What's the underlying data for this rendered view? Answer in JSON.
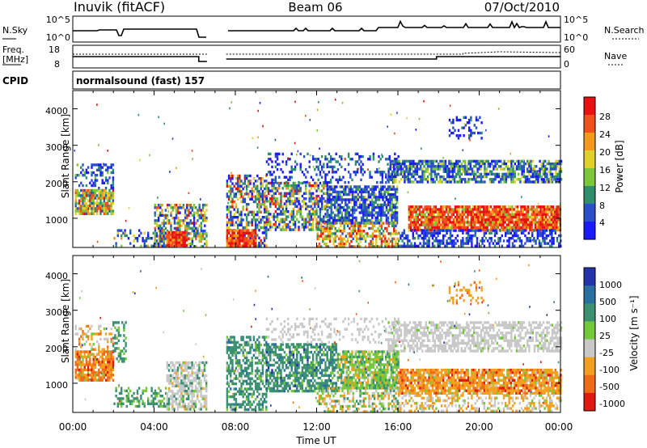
{
  "header": {
    "station": "Inuvik (fitACF)",
    "beam": "Beam 06",
    "date": "07/Oct/2010"
  },
  "noise_panel": {
    "left_label": "N.Sky",
    "right_label": "N.Search",
    "ticks_left": [
      "10^5",
      "10^0"
    ],
    "ticks_right": [
      "10^5",
      "10^0"
    ]
  },
  "freq_panel": {
    "left_label_1": "Freq.",
    "left_label_2": "[MHz]",
    "right_label": "Nave",
    "ticks_left": [
      "18",
      "8"
    ],
    "ticks_right": [
      "60",
      "0"
    ]
  },
  "cpid_panel": {
    "label": "CPID",
    "text": "normalsound (fast) 157"
  },
  "chart_data": [
    {
      "type": "heatmap",
      "name": "power",
      "ylabel": "Slant Range [km]",
      "yticks": [
        "1000",
        "2000",
        "3000",
        "4000"
      ],
      "ylim": [
        200,
        4500
      ],
      "colorbar_label": "Power [dB]",
      "colorbar_ticks": [
        "4",
        "8",
        "12",
        "16",
        "20",
        "24",
        "28"
      ],
      "colors": [
        "#1a1aff",
        "#2a4fc8",
        "#2f8f6a",
        "#7cc63c",
        "#e0d02a",
        "#f39a1c",
        "#f0501c",
        "#e81010"
      ]
    },
    {
      "type": "heatmap",
      "name": "velocity",
      "ylabel": "Slant Range [km]",
      "yticks": [
        "1000",
        "2000",
        "3000",
        "4000"
      ],
      "ylim": [
        200,
        4500
      ],
      "colorbar_label": "Velocity [m s⁻¹]",
      "colorbar_ticks": [
        "1000",
        "500",
        "100",
        "25",
        "-25",
        "-100",
        "-500",
        "-1000"
      ],
      "colors": [
        "#2233aa",
        "#2a6fa0",
        "#3a9070",
        "#74c83a",
        "#c8c8c8",
        "#f2a020",
        "#f06a18",
        "#e01a10"
      ]
    }
  ],
  "x_axis": {
    "ticks": [
      "00:00",
      "04:00",
      "08:00",
      "12:00",
      "16:00",
      "20:00",
      "00:00"
    ],
    "label": "Time UT"
  }
}
